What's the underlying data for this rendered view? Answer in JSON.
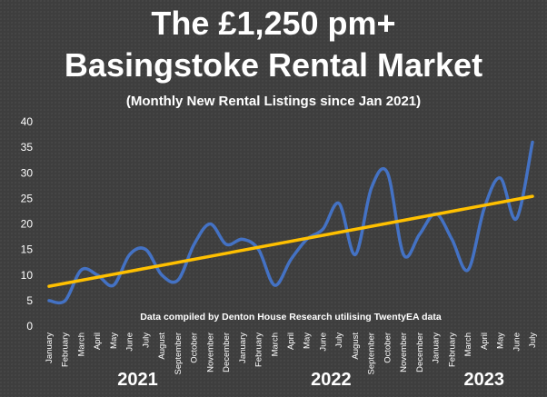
{
  "chart_data": {
    "type": "line",
    "title": "The £1,250 pm+",
    "title_line2": "Basingstoke Rental Market",
    "subtitle": "(Monthly New Rental Listings since Jan 2021)",
    "annotation": "Data compiled by Denton House Research utilising TwentyEA data",
    "xlabel": "",
    "ylabel": "",
    "ylim": [
      0,
      40
    ],
    "yticks": [
      0,
      5,
      10,
      15,
      20,
      25,
      30,
      35,
      40
    ],
    "grid": false,
    "legend": "none",
    "categories": [
      "January",
      "February",
      "March",
      "April",
      "May",
      "June",
      "July",
      "August",
      "September",
      "October",
      "November",
      "December",
      "January",
      "February",
      "March",
      "April",
      "May",
      "June",
      "July",
      "August",
      "September",
      "October",
      "November",
      "December",
      "January",
      "February",
      "March",
      "April",
      "May",
      "June",
      "July"
    ],
    "year_labels": [
      {
        "label": "2021",
        "start": 0,
        "end": 11
      },
      {
        "label": "2022",
        "start": 12,
        "end": 23
      },
      {
        "label": "2023",
        "start": 24,
        "end": 30
      }
    ],
    "series": [
      {
        "values": [
          5,
          5,
          11,
          10,
          8,
          14,
          15,
          10,
          9,
          16,
          20,
          16,
          17,
          15,
          8,
          13,
          17,
          19,
          24,
          14,
          27,
          30,
          14,
          18,
          22,
          17,
          11,
          23,
          29,
          21,
          36
        ],
        "color": "#4472c4"
      }
    ],
    "trendline": {
      "start": 7.8,
      "end": 25.4,
      "color": "#ffc000"
    }
  }
}
